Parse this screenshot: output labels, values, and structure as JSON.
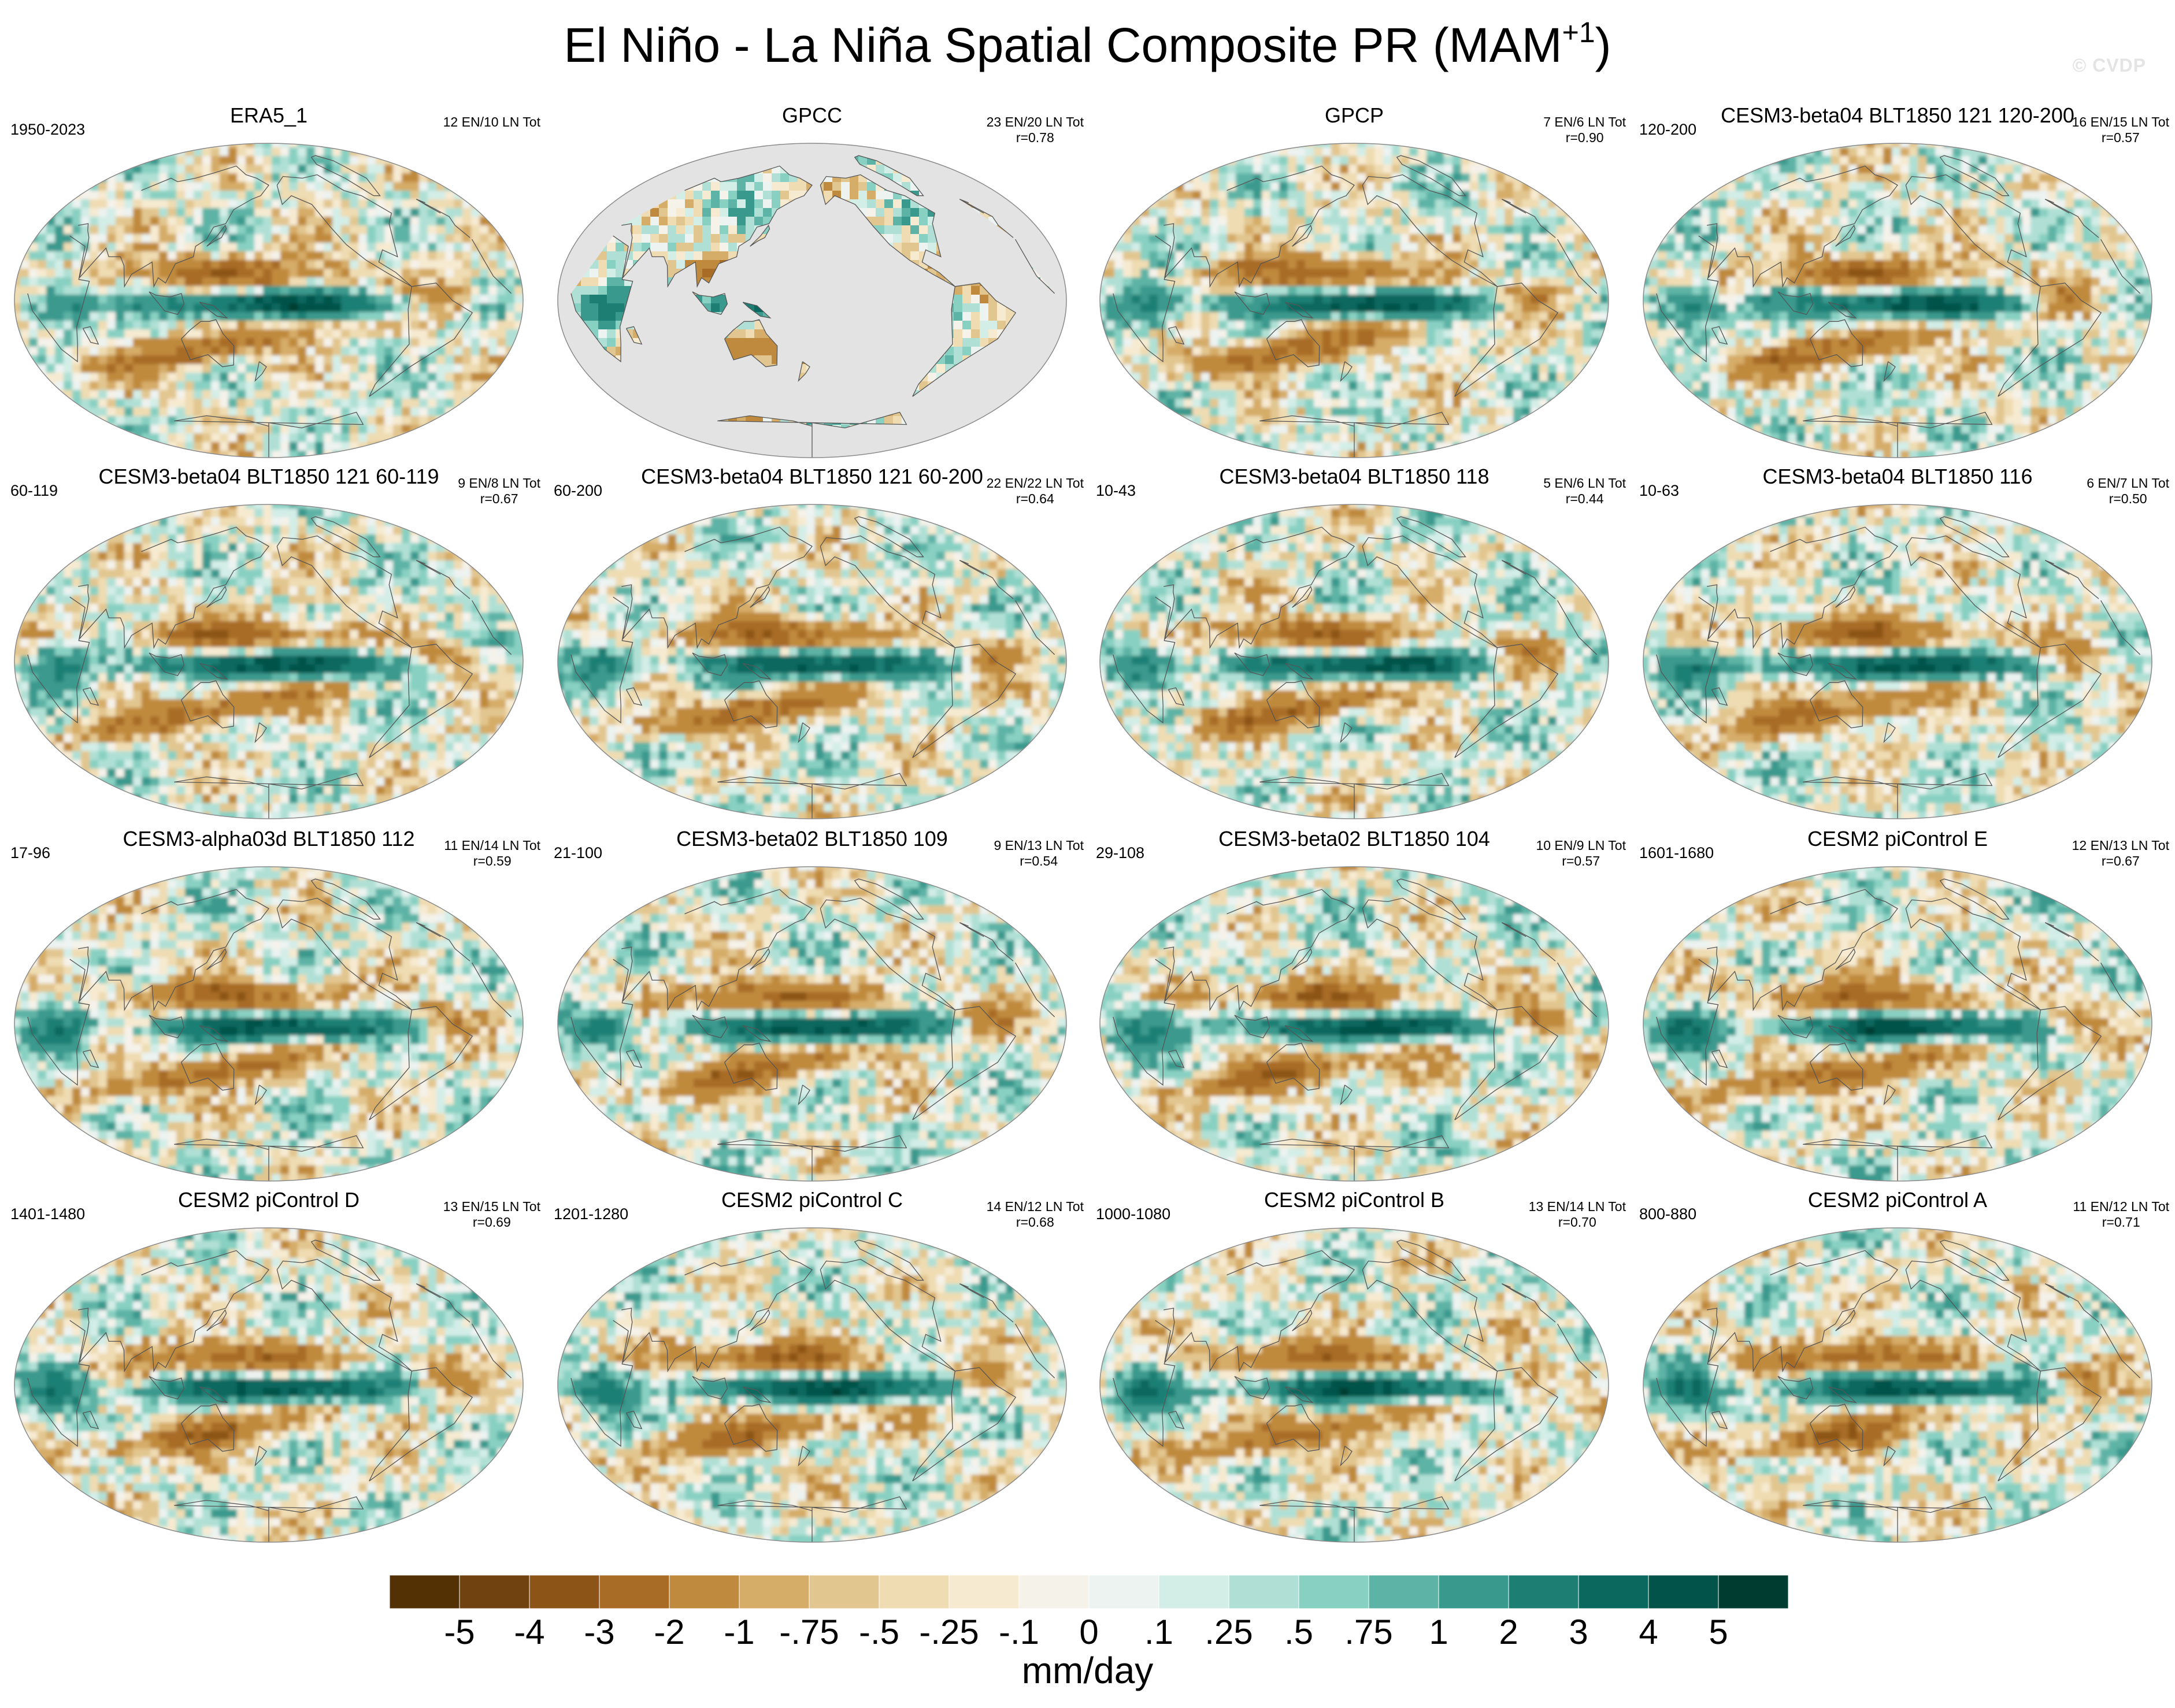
{
  "title": {
    "main": "El Niño - La Niña Spatial Composite PR (MAM",
    "superscript": "+1",
    "close": ")"
  },
  "watermark": "© CVDP",
  "panels": [
    {
      "title": "ERA5_1",
      "period": "1950-2023",
      "counts": "12 EN/10 LN Tot",
      "corr": "",
      "masked_ocean": false
    },
    {
      "title": "GPCC",
      "period": "",
      "counts": "23 EN/20 LN Tot",
      "corr": "r=0.78",
      "masked_ocean": true
    },
    {
      "title": "GPCP",
      "period": "",
      "counts": "7 EN/6 LN Tot",
      "corr": "r=0.90",
      "masked_ocean": false
    },
    {
      "title": "CESM3-beta04 BLT1850 121 120-200",
      "period": "120-200",
      "counts": "16 EN/15 LN Tot",
      "corr": "r=0.57",
      "masked_ocean": false
    },
    {
      "title": "CESM3-beta04 BLT1850 121 60-119",
      "period": "60-119",
      "counts": "9 EN/8 LN Tot",
      "corr": "r=0.67",
      "masked_ocean": false
    },
    {
      "title": "CESM3-beta04 BLT1850 121 60-200",
      "period": "60-200",
      "counts": "22 EN/22 LN Tot",
      "corr": "r=0.64",
      "masked_ocean": false
    },
    {
      "title": "CESM3-beta04 BLT1850 118",
      "period": "10-43",
      "counts": "5 EN/6 LN Tot",
      "corr": "r=0.44",
      "masked_ocean": false
    },
    {
      "title": "CESM3-beta04 BLT1850 116",
      "period": "10-63",
      "counts": "6 EN/7 LN Tot",
      "corr": "r=0.50",
      "masked_ocean": false
    },
    {
      "title": "CESM3-alpha03d BLT1850 112",
      "period": "17-96",
      "counts": "11 EN/14 LN Tot",
      "corr": "r=0.59",
      "masked_ocean": false
    },
    {
      "title": "CESM3-beta02 BLT1850 109",
      "period": "21-100",
      "counts": "9 EN/13 LN Tot",
      "corr": "r=0.54",
      "masked_ocean": false
    },
    {
      "title": "CESM3-beta02 BLT1850 104",
      "period": "29-108",
      "counts": "10 EN/9 LN Tot",
      "corr": "r=0.57",
      "masked_ocean": false
    },
    {
      "title": "CESM2 piControl E",
      "period": "1601-1680",
      "counts": "12 EN/13 LN Tot",
      "corr": "r=0.67",
      "masked_ocean": false
    },
    {
      "title": "CESM2 piControl D",
      "period": "1401-1480",
      "counts": "13 EN/15 LN Tot",
      "corr": "r=0.69",
      "masked_ocean": false
    },
    {
      "title": "CESM2 piControl C",
      "period": "1201-1280",
      "counts": "14 EN/12 LN Tot",
      "corr": "r=0.68",
      "masked_ocean": false
    },
    {
      "title": "CESM2 piControl B",
      "period": "1000-1080",
      "counts": "13 EN/14 LN Tot",
      "corr": "r=0.70",
      "masked_ocean": false
    },
    {
      "title": "CESM2 piControl A",
      "period": "800-880",
      "counts": "11 EN/12 LN Tot",
      "corr": "r=0.71",
      "masked_ocean": false
    }
  ],
  "colorbar": {
    "units": "mm/day",
    "labels": [
      "-5",
      "-4",
      "-3",
      "-2",
      "-1",
      "-.75",
      "-.5",
      "-.25",
      "-.1",
      "0",
      ".1",
      ".25",
      ".5",
      ".75",
      "1",
      "2",
      "3",
      "4",
      "5"
    ],
    "colors": [
      "#543005",
      "#6f420f",
      "#8c5417",
      "#a86c26",
      "#c08a3e",
      "#d5ac68",
      "#e2c68f",
      "#efdcb2",
      "#f6ead1",
      "#f5f2ea",
      "#ecf3f1",
      "#d3ede7",
      "#b0e0d5",
      "#88d0c2",
      "#5db3a5",
      "#3a998d",
      "#1d7f74",
      "#0b685f",
      "#02534a",
      "#003c30"
    ]
  },
  "colors": {
    "continent_outline": "#555555",
    "globe_border": "#8a8a8a",
    "masked_fill": "#e3e3e3"
  }
}
